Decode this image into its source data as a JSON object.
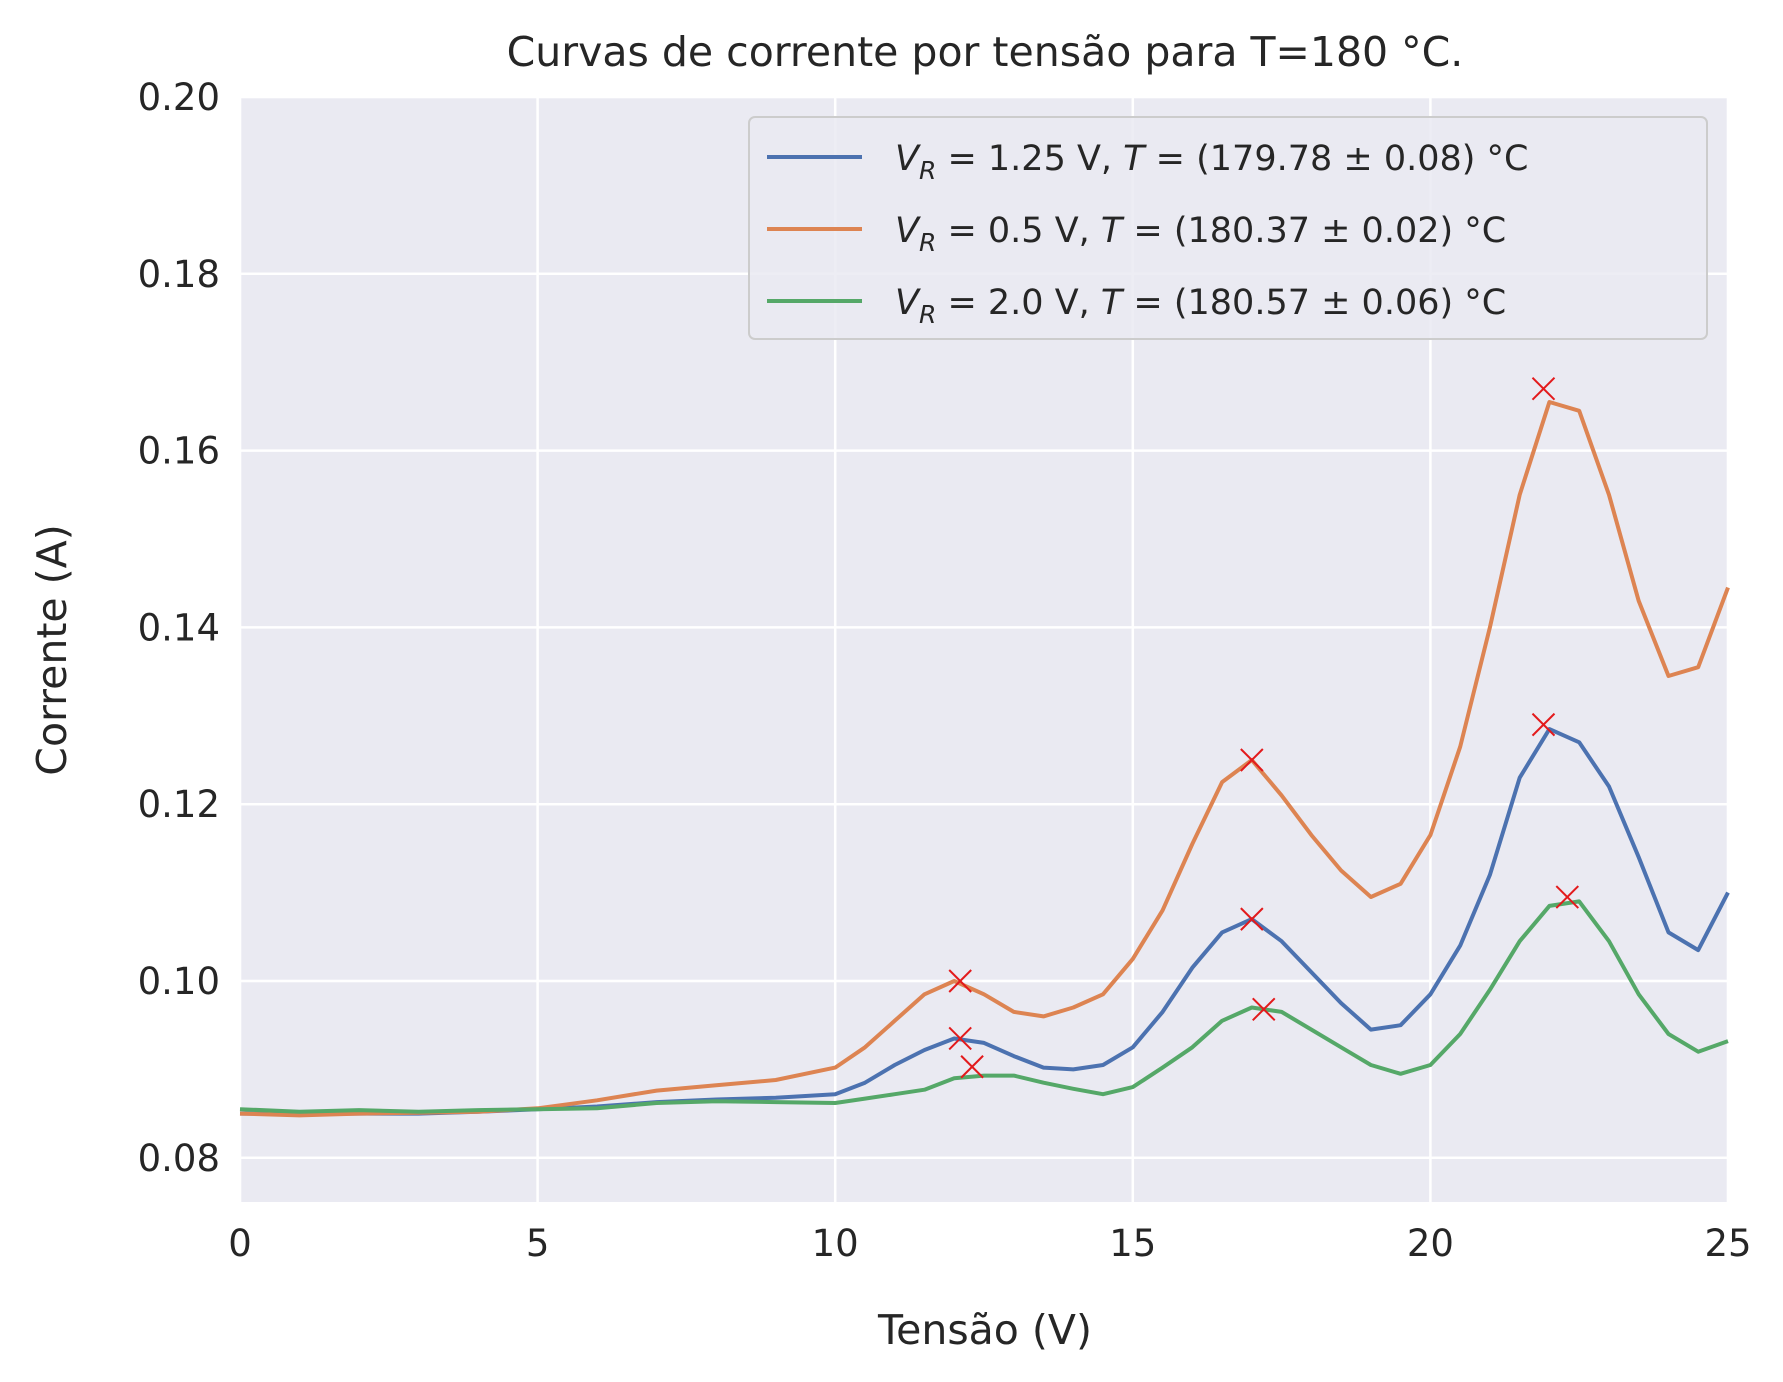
{
  "chart_data": {
    "type": "line",
    "title": "Curvas de corrente por tensão para T=180 °C.",
    "xlabel": "Tensão (V)",
    "ylabel": "Corrente (A)",
    "xlim": [
      0,
      25
    ],
    "ylim": [
      0.075,
      0.2
    ],
    "grid": true,
    "legend_position": "top-right",
    "x_ticks": [
      0,
      5,
      10,
      15,
      20,
      25
    ],
    "x_tick_labels": [
      "0",
      "5",
      "10",
      "15",
      "20",
      "25"
    ],
    "y_ticks": [
      0.08,
      0.1,
      0.12,
      0.14,
      0.16,
      0.18,
      0.2
    ],
    "y_tick_labels": [
      "0.08",
      "0.10",
      "0.12",
      "0.14",
      "0.16",
      "0.18",
      "0.20"
    ],
    "peak_marker_color": "#e31a1c",
    "series": [
      {
        "name": "V_R = 1.25 V, T = (179.78 ± 0.08) °C",
        "label_parts": {
          "var": "V",
          "sub": "R",
          "rest": " = 1.25 V, ",
          "tvar": "T",
          "tail": " = (179.78 ± 0.08) °C"
        },
        "color": "#4c72b0",
        "x": [
          0,
          1,
          2,
          3,
          4,
          5,
          6,
          7,
          8,
          9,
          10,
          10.5,
          11,
          11.5,
          12,
          12.5,
          13,
          13.5,
          14,
          14.5,
          15,
          15.5,
          16,
          16.5,
          17,
          17.5,
          18,
          18.5,
          19,
          19.5,
          20,
          20.5,
          21,
          21.5,
          22,
          22.5,
          23,
          23.5,
          24,
          24.5,
          25
        ],
        "y": [
          0.085,
          0.085,
          0.085,
          0.085,
          0.0852,
          0.0855,
          0.0858,
          0.0863,
          0.0866,
          0.0868,
          0.0872,
          0.0885,
          0.0905,
          0.0922,
          0.0935,
          0.093,
          0.0915,
          0.0902,
          0.09,
          0.0905,
          0.0925,
          0.0965,
          0.1015,
          0.1055,
          0.107,
          0.1045,
          0.101,
          0.0975,
          0.0945,
          0.095,
          0.0985,
          0.104,
          0.112,
          0.123,
          0.1285,
          0.127,
          0.122,
          0.114,
          0.1055,
          0.1035,
          0.11
        ],
        "peaks": [
          [
            12.1,
            0.0935
          ],
          [
            17.0,
            0.107
          ],
          [
            21.9,
            0.129
          ]
        ]
      },
      {
        "name": "V_R = 0.5 V, T = (180.37 ± 0.02) °C",
        "label_parts": {
          "var": "V",
          "sub": "R",
          "rest": " = 0.5 V, ",
          "tvar": "T",
          "tail": " = (180.37 ± 0.02) °C"
        },
        "color": "#dd8452",
        "x": [
          0,
          1,
          2,
          3,
          4,
          5,
          6,
          7,
          8,
          9,
          10,
          10.5,
          11,
          11.5,
          12,
          12.5,
          13,
          13.5,
          14,
          14.5,
          15,
          15.5,
          16,
          16.5,
          17,
          17.5,
          18,
          18.5,
          19,
          19.5,
          20,
          20.5,
          21,
          21.5,
          22,
          22.5,
          23,
          23.5,
          24,
          24.5,
          25
        ],
        "y": [
          0.085,
          0.0848,
          0.085,
          0.0851,
          0.0852,
          0.0856,
          0.0865,
          0.0876,
          0.0882,
          0.0888,
          0.0902,
          0.0925,
          0.0955,
          0.0985,
          0.1,
          0.0985,
          0.0965,
          0.096,
          0.097,
          0.0985,
          0.1025,
          0.108,
          0.1155,
          0.1225,
          0.125,
          0.121,
          0.1165,
          0.1125,
          0.1095,
          0.111,
          0.1165,
          0.1265,
          0.14,
          0.155,
          0.1655,
          0.1645,
          0.155,
          0.143,
          0.1345,
          0.1355,
          0.1445
        ],
        "peaks": [
          [
            12.1,
            0.1
          ],
          [
            17.0,
            0.125
          ],
          [
            21.9,
            0.167
          ]
        ]
      },
      {
        "name": "V_R = 2.0 V, T = (180.57 ± 0.06) °C",
        "label_parts": {
          "var": "V",
          "sub": "R",
          "rest": " = 2.0 V, ",
          "tvar": "T",
          "tail": " = (180.57 ± 0.06) °C"
        },
        "color": "#55a868",
        "x": [
          0,
          1,
          2,
          3,
          4,
          5,
          6,
          7,
          8,
          9,
          10,
          10.5,
          11,
          11.5,
          12,
          12.5,
          13,
          13.5,
          14,
          14.5,
          15,
          15.5,
          16,
          16.5,
          17,
          17.5,
          18,
          18.5,
          19,
          19.5,
          20,
          20.5,
          21,
          21.5,
          22,
          22.5,
          23,
          23.5,
          24,
          24.5,
          25
        ],
        "y": [
          0.0855,
          0.0852,
          0.0854,
          0.0852,
          0.0854,
          0.0855,
          0.0856,
          0.0862,
          0.0864,
          0.0863,
          0.0862,
          0.0867,
          0.0872,
          0.0877,
          0.089,
          0.0893,
          0.0893,
          0.0885,
          0.0878,
          0.0872,
          0.088,
          0.0902,
          0.0925,
          0.0955,
          0.097,
          0.0965,
          0.0945,
          0.0925,
          0.0905,
          0.0895,
          0.0905,
          0.094,
          0.099,
          0.1045,
          0.1085,
          0.109,
          0.1045,
          0.0985,
          0.094,
          0.092,
          0.0932
        ],
        "peaks": [
          [
            12.3,
            0.0903
          ],
          [
            17.2,
            0.0968
          ],
          [
            22.3,
            0.1095
          ]
        ]
      }
    ]
  }
}
